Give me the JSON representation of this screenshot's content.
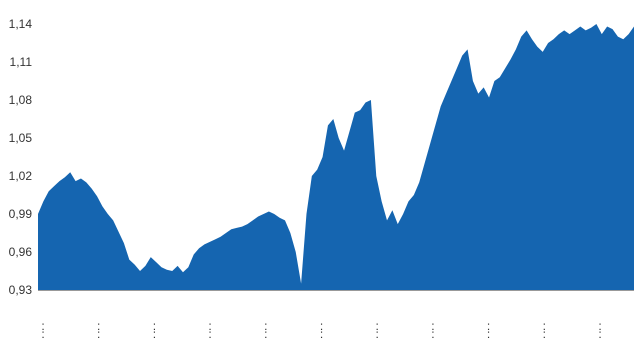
{
  "chart_data": {
    "type": "area",
    "title": "",
    "xlabel": "",
    "ylabel": "",
    "ylim": [
      0.93,
      1.145
    ],
    "yticks": [
      "1,14",
      "1,11",
      "1,08",
      "1,05",
      "1,02",
      "0,99",
      "0,96",
      "0,93"
    ],
    "ytick_values": [
      1.14,
      1.11,
      1.08,
      1.05,
      1.02,
      0.99,
      0.96,
      0.93
    ],
    "xtick_count": 11,
    "xtick_labels": [
      ":",
      ":",
      ":",
      ":",
      ":",
      ":",
      ":",
      ":",
      ":",
      ":",
      ":"
    ],
    "grid": false,
    "fill_color": "#1565b0",
    "axis_color": "#999999",
    "series": [
      {
        "values": [
          0.99,
          1.0,
          1.008,
          1.012,
          1.016,
          1.019,
          1.023,
          1.016,
          1.018,
          1.015,
          1.01,
          1.004,
          0.996,
          0.99,
          0.985,
          0.976,
          0.967,
          0.954,
          0.95,
          0.945,
          0.949,
          0.956,
          0.952,
          0.948,
          0.946,
          0.945,
          0.949,
          0.944,
          0.948,
          0.958,
          0.963,
          0.966,
          0.968,
          0.97,
          0.972,
          0.975,
          0.978,
          0.979,
          0.98,
          0.982,
          0.985,
          0.988,
          0.99,
          0.992,
          0.99,
          0.987,
          0.985,
          0.975,
          0.96,
          0.935,
          0.99,
          1.02,
          1.025,
          1.035,
          1.06,
          1.065,
          1.05,
          1.04,
          1.055,
          1.07,
          1.072,
          1.078,
          1.08,
          1.02,
          1.0,
          0.985,
          0.993,
          0.982,
          0.99,
          1.0,
          1.005,
          1.015,
          1.03,
          1.045,
          1.06,
          1.075,
          1.085,
          1.095,
          1.105,
          1.115,
          1.12,
          1.095,
          1.085,
          1.09,
          1.082,
          1.095,
          1.098,
          1.105,
          1.112,
          1.12,
          1.13,
          1.135,
          1.128,
          1.122,
          1.118,
          1.125,
          1.128,
          1.132,
          1.135,
          1.132,
          1.135,
          1.138,
          1.135,
          1.137,
          1.14,
          1.132,
          1.138,
          1.136,
          1.13,
          1.128,
          1.132,
          1.138
        ]
      }
    ]
  }
}
